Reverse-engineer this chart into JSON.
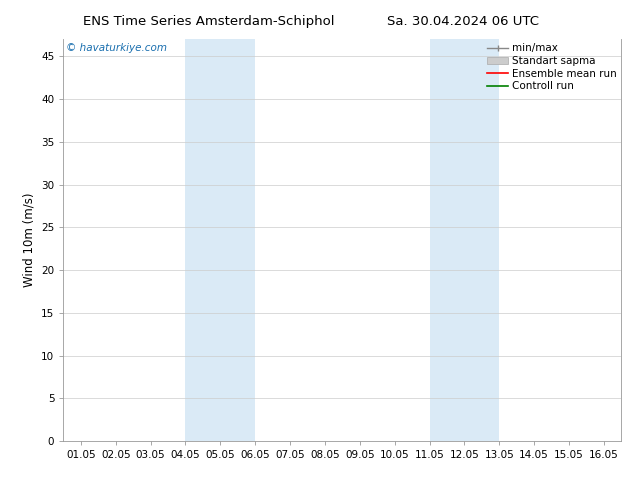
{
  "title_left": "ENS Time Series Amsterdam-Schiphol",
  "title_right": "Sa. 30.04.2024 06 UTC",
  "ylabel": "Wind 10m (m/s)",
  "watermark": "© havaturkiye.com",
  "x_tick_labels": [
    "01.05",
    "02.05",
    "03.05",
    "04.05",
    "05.05",
    "06.05",
    "07.05",
    "08.05",
    "09.05",
    "10.05",
    "11.05",
    "12.05",
    "13.05",
    "14.05",
    "15.05",
    "16.05"
  ],
  "x_tick_positions": [
    0,
    1,
    2,
    3,
    4,
    5,
    6,
    7,
    8,
    9,
    10,
    11,
    12,
    13,
    14,
    15
  ],
  "ylim": [
    0,
    47
  ],
  "yticks": [
    0,
    5,
    10,
    15,
    20,
    25,
    30,
    35,
    40,
    45
  ],
  "shaded_regions": [
    {
      "xmin": 3,
      "xmax": 5,
      "color": "#daeaf6"
    },
    {
      "xmin": 10,
      "xmax": 12,
      "color": "#daeaf6"
    }
  ],
  "bg_color": "#ffffff",
  "plot_bg_color": "#ffffff",
  "grid_color": "#cccccc",
  "title_fontsize": 9.5,
  "label_fontsize": 8.5,
  "tick_fontsize": 7.5,
  "legend_fontsize": 7.5,
  "watermark_color": "#1a6faf",
  "figsize": [
    6.34,
    4.9
  ],
  "dpi": 100
}
